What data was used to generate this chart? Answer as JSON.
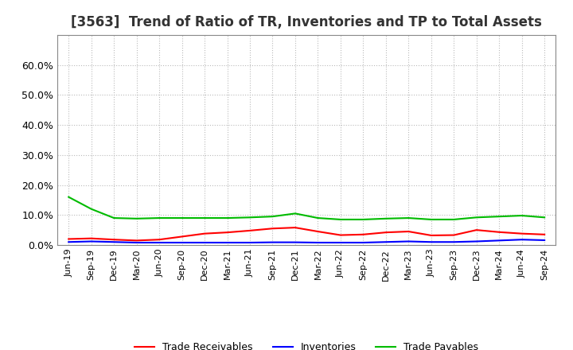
{
  "title": "[3563]  Trend of Ratio of TR, Inventories and TP to Total Assets",
  "x_labels": [
    "Jun-19",
    "Sep-19",
    "Dec-19",
    "Mar-20",
    "Jun-20",
    "Sep-20",
    "Dec-20",
    "Mar-21",
    "Jun-21",
    "Sep-21",
    "Dec-21",
    "Mar-22",
    "Jun-22",
    "Sep-22",
    "Dec-22",
    "Mar-23",
    "Jun-23",
    "Sep-23",
    "Dec-23",
    "Mar-24",
    "Jun-24",
    "Sep-24"
  ],
  "trade_receivables": [
    0.02,
    0.022,
    0.018,
    0.015,
    0.018,
    0.028,
    0.038,
    0.042,
    0.048,
    0.055,
    0.058,
    0.045,
    0.033,
    0.035,
    0.042,
    0.045,
    0.032,
    0.033,
    0.05,
    0.043,
    0.038,
    0.035
  ],
  "inventories": [
    0.01,
    0.012,
    0.01,
    0.008,
    0.008,
    0.008,
    0.008,
    0.008,
    0.008,
    0.009,
    0.009,
    0.008,
    0.008,
    0.008,
    0.01,
    0.012,
    0.01,
    0.01,
    0.012,
    0.015,
    0.018,
    0.016
  ],
  "trade_payables": [
    0.16,
    0.12,
    0.09,
    0.088,
    0.09,
    0.09,
    0.09,
    0.09,
    0.092,
    0.095,
    0.105,
    0.09,
    0.085,
    0.085,
    0.088,
    0.09,
    0.085,
    0.085,
    0.092,
    0.095,
    0.098,
    0.092
  ],
  "ylim": [
    0.0,
    0.7
  ],
  "yticks": [
    0.0,
    0.1,
    0.2,
    0.3,
    0.4,
    0.5,
    0.6
  ],
  "line_colors": {
    "trade_receivables": "#ff0000",
    "inventories": "#0000ff",
    "trade_payables": "#00bb00"
  },
  "legend_labels": [
    "Trade Receivables",
    "Inventories",
    "Trade Payables"
  ],
  "background_color": "#ffffff",
  "grid_color": "#bbbbbb",
  "title_fontsize": 12,
  "ytick_fontsize": 9,
  "xtick_fontsize": 8
}
